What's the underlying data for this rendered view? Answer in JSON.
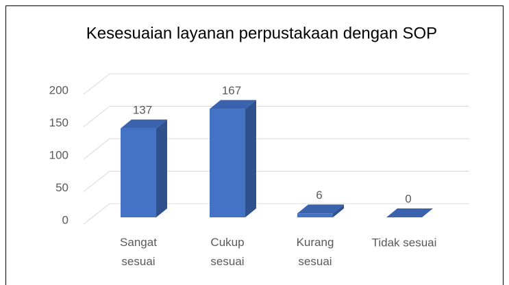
{
  "chart_data": {
    "type": "bar3d",
    "title": "Kesesuaian layanan perpustakaan dengan SOP",
    "categories": [
      "Sangat sesuai",
      "Cukup sesuai",
      "Kurang sesuai",
      "Tidak sesuai"
    ],
    "values": [
      137,
      167,
      6,
      0
    ],
    "color": "#4472c4",
    "ylim": [
      0,
      200
    ],
    "yticks": [
      0,
      50,
      100,
      150,
      200
    ],
    "grid": true
  }
}
